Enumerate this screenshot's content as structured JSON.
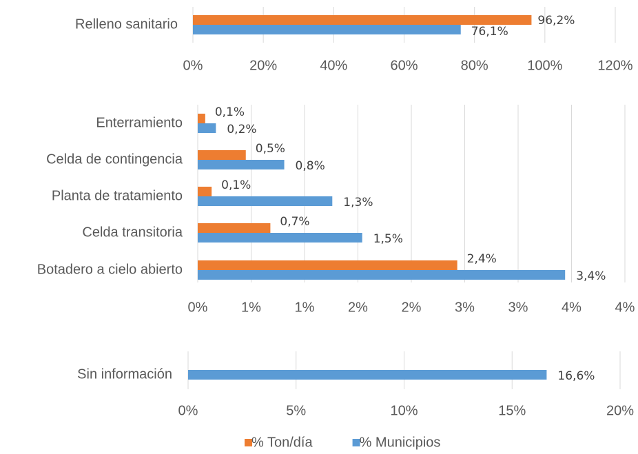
{
  "chart_data": [
    {
      "type": "bar",
      "orientation": "horizontal",
      "grid": true,
      "legend": "bottom",
      "categories": [
        "Relleno sanitario"
      ],
      "series": [
        {
          "name": "% Ton/día",
          "color": "#ED7D31",
          "values": [
            96.2
          ],
          "value_labels": [
            "96,2%"
          ]
        },
        {
          "name": "% Municipios",
          "color": "#5B9BD5",
          "values": [
            76.1
          ],
          "value_labels": [
            "76,1%"
          ]
        }
      ],
      "xlim": [
        0,
        120
      ],
      "xticks": [
        {
          "value": 0,
          "label": "0%"
        },
        {
          "value": 20,
          "label": "20%"
        },
        {
          "value": 40,
          "label": "40%"
        },
        {
          "value": 60,
          "label": "60%"
        },
        {
          "value": 80,
          "label": "80%"
        },
        {
          "value": 100,
          "label": "100%"
        },
        {
          "value": 120,
          "label": "120%"
        }
      ]
    },
    {
      "type": "bar",
      "orientation": "horizontal",
      "grid": true,
      "categories": [
        "Enterramiento",
        "Celda de contingencia",
        "Planta de tratamiento",
        "Celda transitoria",
        "Botadero a cielo abierto"
      ],
      "series": [
        {
          "name": "% Ton/día",
          "color": "#ED7D31",
          "values": [
            0.07,
            0.45,
            0.13,
            0.68,
            2.43
          ],
          "value_labels": [
            "0,1%",
            "0,5%",
            "0,1%",
            "0,7%",
            "2,4%"
          ]
        },
        {
          "name": "% Municipios",
          "color": "#5B9BD5",
          "values": [
            0.17,
            0.81,
            1.26,
            1.54,
            3.44
          ],
          "value_labels": [
            "0,2%",
            "0,8%",
            "1,3%",
            "1,5%",
            "3,4%"
          ]
        }
      ],
      "xlim": [
        0,
        4
      ],
      "xticks": [
        {
          "value": 0,
          "label": "0%"
        },
        {
          "value": 0.5,
          "label": "1%"
        },
        {
          "value": 1,
          "label": "1%"
        },
        {
          "value": 1.5,
          "label": "2%"
        },
        {
          "value": 2,
          "label": "2%"
        },
        {
          "value": 2.5,
          "label": "3%"
        },
        {
          "value": 3,
          "label": "3%"
        },
        {
          "value": 3.5,
          "label": "4%"
        },
        {
          "value": 4,
          "label": "4%"
        }
      ]
    },
    {
      "type": "bar",
      "orientation": "horizontal",
      "grid": true,
      "categories": [
        "Sin información"
      ],
      "series": [
        {
          "name": "% Municipios",
          "color": "#5B9BD5",
          "values": [
            16.6
          ],
          "value_labels": [
            "16,6%"
          ]
        }
      ],
      "xlim": [
        0,
        20
      ],
      "xticks": [
        {
          "value": 0,
          "label": "0%"
        },
        {
          "value": 5,
          "label": "5%"
        },
        {
          "value": 10,
          "label": "10%"
        },
        {
          "value": 15,
          "label": "15%"
        },
        {
          "value": 20,
          "label": "20%"
        }
      ]
    }
  ]
}
